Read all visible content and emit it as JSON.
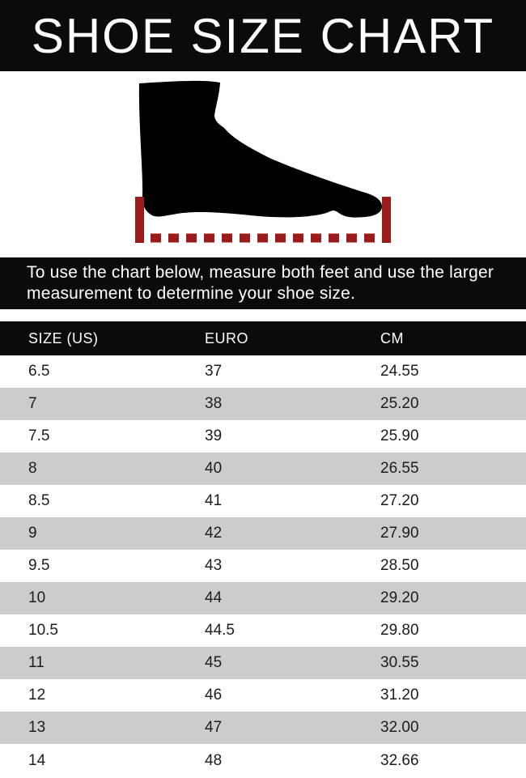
{
  "title": "SHOE SIZE CHART",
  "instruction": {
    "line1": "To use the chart below, measure both feet and use the larger",
    "line2": "measurement to determine your shoe size."
  },
  "illustration": {
    "icon": "foot-silhouette-icon",
    "foot_color": "#000000",
    "measure_line_color": "#9b1b1b"
  },
  "chart_data": {
    "type": "table",
    "title": "SHOE SIZE CHART",
    "columns": [
      "SIZE (US)",
      "EURO",
      "CM"
    ],
    "rows": [
      [
        "6.5",
        "37",
        "24.55"
      ],
      [
        "7",
        "38",
        "25.20"
      ],
      [
        "7.5",
        "39",
        "25.90"
      ],
      [
        "8",
        "40",
        "26.55"
      ],
      [
        "8.5",
        "41",
        "27.20"
      ],
      [
        "9",
        "42",
        "27.90"
      ],
      [
        "9.5",
        "43",
        "28.50"
      ],
      [
        "10",
        "44",
        "29.20"
      ],
      [
        "10.5",
        "44.5",
        "29.80"
      ],
      [
        "11",
        "45",
        "30.55"
      ],
      [
        "12",
        "46",
        "31.20"
      ],
      [
        "13",
        "47",
        "32.00"
      ],
      [
        "14",
        "48",
        "32.66"
      ]
    ],
    "row_colors": [
      "#ffffff",
      "#cccccc"
    ],
    "header_bg": "#0b0b0b",
    "header_text_color": "#ffffff"
  }
}
